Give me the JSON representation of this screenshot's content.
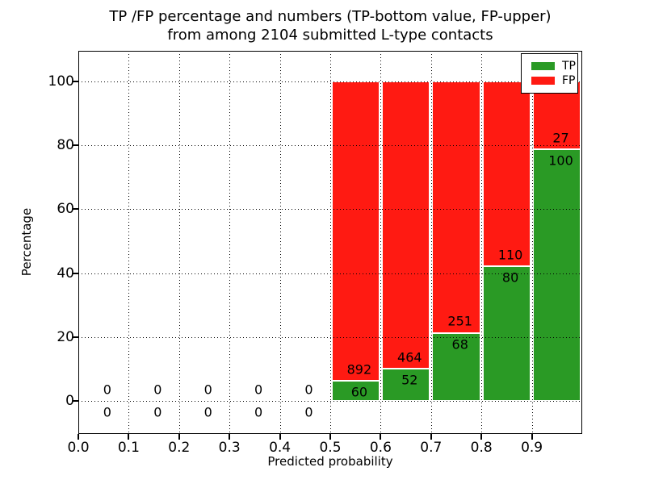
{
  "title": {
    "line1": "TP /FP percentage and numbers (TP-bottom value, FP-upper)",
    "line2": "from among 2104 submitted L-type contacts"
  },
  "axes": {
    "xlabel": "Predicted probability",
    "ylabel": "Percentage",
    "x_tick_labels": [
      "0.0",
      "0.1",
      "0.2",
      "0.3",
      "0.4",
      "0.5",
      "0.6",
      "0.7",
      "0.8",
      "0.9"
    ],
    "y_tick_labels": [
      "0",
      "20",
      "40",
      "60",
      "80",
      "100"
    ]
  },
  "legend": {
    "position": "upper right",
    "entries": [
      {
        "label": "TP",
        "color": "#2a9a25"
      },
      {
        "label": "FP",
        "color": "#ff1a12"
      }
    ]
  },
  "colors": {
    "tp_green": "#2a9a25",
    "fp_red": "#ff1a12",
    "grid": "#000000",
    "background": "#ffffff"
  },
  "chart_data": {
    "type": "bar",
    "stacked": true,
    "normalized_to_percent": true,
    "title": "TP /FP percentage and numbers (TP-bottom value, FP-upper) from among 2104 submitted L-type contacts",
    "xlabel": "Predicted probability",
    "ylabel": "Percentage",
    "total_submitted_contacts": 2104,
    "x_bin_starts": [
      0.0,
      0.1,
      0.2,
      0.3,
      0.4,
      0.5,
      0.6,
      0.7,
      0.8,
      0.9
    ],
    "bin_width": 0.1,
    "series": [
      {
        "name": "TP",
        "color": "#2a9a25",
        "counts": [
          0,
          0,
          0,
          0,
          0,
          60,
          52,
          68,
          80,
          100
        ]
      },
      {
        "name": "FP",
        "color": "#ff1a12",
        "counts": [
          0,
          0,
          0,
          0,
          0,
          892,
          464,
          251,
          110,
          27
        ]
      }
    ],
    "xlim": [
      0.0,
      1.0
    ],
    "ylim": [
      -10.4,
      109.6
    ],
    "x_ticks": [
      0.0,
      0.1,
      0.2,
      0.3,
      0.4,
      0.5,
      0.6,
      0.7,
      0.8,
      0.9
    ],
    "y_ticks": [
      0,
      20,
      40,
      60,
      80,
      100
    ],
    "grid": true,
    "grid_style": "dotted",
    "legend_position": "upper right",
    "annotation_note": "TP count shown below segment boundary, FP count shown above"
  }
}
